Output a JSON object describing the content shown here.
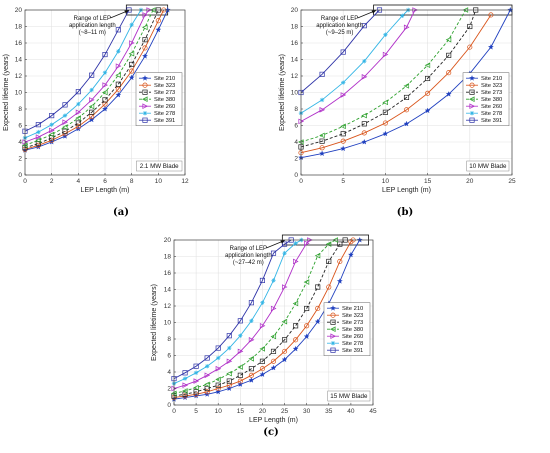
{
  "series_styles": [
    {
      "color": "#1f3fbf",
      "marker": "star",
      "dash": "none"
    },
    {
      "color": "#d9541a",
      "marker": "circle",
      "dash": "none"
    },
    {
      "color": "#222222",
      "marker": "square",
      "dash": "3,2"
    },
    {
      "color": "#2ca02c",
      "marker": "triangle-left",
      "dash": "3,2"
    },
    {
      "color": "#b030c8",
      "marker": "triangle-right",
      "dash": "none"
    },
    {
      "color": "#33b5e5",
      "marker": "asterisk",
      "dash": "none"
    },
    {
      "color": "#2f34a8",
      "marker": "square",
      "dash": "none"
    }
  ],
  "chart_data": [
    {
      "type": "line",
      "panel_label": "(a)",
      "xlabel": "LEP Length (m)",
      "ylabel": "Expected lifetime (years)",
      "xlim": [
        0,
        12
      ],
      "ylim": [
        0,
        20
      ],
      "xticks": [
        0,
        2,
        4,
        6,
        8,
        10,
        12
      ],
      "yticks": [
        0,
        2,
        4,
        6,
        8,
        10,
        12,
        14,
        16,
        18,
        20
      ],
      "grid": true,
      "legend_position": "right",
      "box_label": "2.1 MW Blade",
      "annotation": [
        "Range of LEP",
        "application length",
        "(~8–11 m)"
      ],
      "range_box": [
        7.6,
        10.7
      ],
      "series": [
        {
          "name": "Site 210",
          "x": [
            0,
            1,
            2,
            3,
            4,
            5,
            6,
            7,
            8,
            9,
            10,
            10.7
          ],
          "y": [
            3.0,
            3.4,
            4.0,
            4.7,
            5.6,
            6.7,
            8.0,
            9.7,
            11.8,
            14.4,
            17.6,
            20.0
          ]
        },
        {
          "name": "Site 323",
          "x": [
            0,
            1,
            2,
            3,
            4,
            5,
            6,
            7,
            8,
            9,
            10,
            10.4
          ],
          "y": [
            3.1,
            3.6,
            4.2,
            5.0,
            5.9,
            7.1,
            8.6,
            10.4,
            12.6,
            15.4,
            18.7,
            20.0
          ]
        },
        {
          "name": "Site 273",
          "x": [
            0,
            1,
            2,
            3,
            4,
            5,
            6,
            7,
            8,
            9,
            10
          ],
          "y": [
            3.3,
            3.8,
            4.5,
            5.3,
            6.3,
            7.6,
            9.1,
            11.0,
            13.4,
            16.4,
            20.0
          ]
        },
        {
          "name": "Site 380",
          "x": [
            0,
            1,
            2,
            3,
            4,
            5,
            6,
            7,
            8,
            9,
            9.6
          ],
          "y": [
            3.6,
            4.2,
            4.9,
            5.8,
            6.9,
            8.3,
            10.0,
            12.1,
            14.7,
            17.9,
            20.0
          ]
        },
        {
          "name": "Site 260",
          "x": [
            0,
            1,
            2,
            3,
            4,
            5,
            6,
            7,
            8,
            9,
            9.3
          ],
          "y": [
            4.0,
            4.6,
            5.4,
            6.4,
            7.6,
            9.1,
            10.9,
            13.2,
            16.0,
            19.4,
            20.0
          ]
        },
        {
          "name": "Site 278",
          "x": [
            0,
            1,
            2,
            3,
            4,
            5,
            6,
            7,
            8,
            8.7
          ],
          "y": [
            4.5,
            5.2,
            6.1,
            7.2,
            8.6,
            10.3,
            12.4,
            15.0,
            18.2,
            20.0
          ]
        },
        {
          "name": "Site 391",
          "x": [
            0,
            1,
            2,
            3,
            4,
            5,
            6,
            7,
            7.8
          ],
          "y": [
            5.3,
            6.1,
            7.2,
            8.5,
            10.1,
            12.1,
            14.6,
            17.6,
            20.0
          ]
        }
      ]
    },
    {
      "type": "line",
      "panel_label": "(b)",
      "xlabel": "LEP Length (m)",
      "ylabel": "Expected lifetime (years)",
      "xlim": [
        0,
        25
      ],
      "ylim": [
        0,
        20
      ],
      "xticks": [
        0,
        5,
        10,
        15,
        20,
        25
      ],
      "yticks": [
        0,
        2,
        4,
        6,
        8,
        10,
        12,
        14,
        16,
        18,
        20
      ],
      "grid": true,
      "legend_position": "right",
      "box_label": "10 MW Blade",
      "annotation": [
        "Range of LEP",
        "application length",
        "(~9–25 m)"
      ],
      "range_box": [
        8.6,
        25
      ],
      "series": [
        {
          "name": "Site 210",
          "x": [
            0,
            2.5,
            5,
            7.5,
            10,
            12.5,
            15,
            17.5,
            20,
            22.5,
            24.8
          ],
          "y": [
            2.1,
            2.6,
            3.2,
            4.0,
            5.0,
            6.2,
            7.8,
            9.8,
            12.3,
            15.5,
            20.0
          ]
        },
        {
          "name": "Site 323",
          "x": [
            0,
            2.5,
            5,
            7.5,
            10,
            12.5,
            15,
            17.5,
            20,
            22.5
          ],
          "y": [
            2.7,
            3.3,
            4.1,
            5.1,
            6.3,
            7.9,
            9.9,
            12.4,
            15.5,
            19.4
          ]
        },
        {
          "name": "Site 273",
          "x": [
            0,
            2.5,
            5,
            7.5,
            10,
            12.5,
            15,
            17.5,
            20,
            20.7
          ],
          "y": [
            3.4,
            4.1,
            5.0,
            6.2,
            7.6,
            9.4,
            11.7,
            14.5,
            18.0,
            20.0
          ]
        },
        {
          "name": "Site 380",
          "x": [
            0,
            2.5,
            5,
            7.5,
            10,
            12.5,
            15,
            17.5,
            19.5
          ],
          "y": [
            4.0,
            4.8,
            5.9,
            7.2,
            8.8,
            10.8,
            13.3,
            16.4,
            20.0
          ]
        },
        {
          "name": "Site 260",
          "x": [
            0,
            2.5,
            5,
            7.5,
            10,
            12.5,
            13.5
          ],
          "y": [
            6.5,
            7.9,
            9.7,
            11.9,
            14.6,
            17.9,
            20.0
          ]
        },
        {
          "name": "Site 278",
          "x": [
            0,
            2.5,
            5,
            7.5,
            10,
            12,
            12.7
          ],
          "y": [
            7.5,
            9.1,
            11.2,
            13.8,
            17.0,
            19.3,
            20.0
          ]
        },
        {
          "name": "Site 391",
          "x": [
            0,
            2.5,
            5,
            7.5,
            9.3
          ],
          "y": [
            10.0,
            12.2,
            14.9,
            18.1,
            20.0
          ]
        }
      ]
    },
    {
      "type": "line",
      "panel_label": "(c)",
      "xlabel": "LEP Length (m)",
      "ylabel": "Expected lifetime (years)",
      "xlim": [
        0,
        45
      ],
      "ylim": [
        0,
        20
      ],
      "xticks": [
        0,
        5,
        10,
        15,
        20,
        25,
        30,
        35,
        40,
        45
      ],
      "yticks": [
        0,
        2,
        4,
        6,
        8,
        10,
        12,
        14,
        16,
        18,
        20
      ],
      "grid": true,
      "legend_position": "right",
      "box_label": "15 MW Blade",
      "annotation": [
        "Range of LEP",
        "application length",
        "(~27–42 m)"
      ],
      "range_box": [
        24.5,
        44
      ],
      "series": [
        {
          "name": "Site 210",
          "x": [
            0,
            2.5,
            5,
            7.5,
            10,
            12.5,
            15,
            17.5,
            20,
            22.5,
            25,
            27.5,
            30,
            32.5,
            35,
            37.5,
            40,
            42
          ],
          "y": [
            0.7,
            0.9,
            1.1,
            1.3,
            1.6,
            2.0,
            2.5,
            3.0,
            3.7,
            4.5,
            5.5,
            6.8,
            8.3,
            10.1,
            12.3,
            15.0,
            18.2,
            20.0
          ]
        },
        {
          "name": "Site 323",
          "x": [
            0,
            2.5,
            5,
            7.5,
            10,
            12.5,
            15,
            17.5,
            20,
            22.5,
            25,
            27.5,
            30,
            32.5,
            35,
            37.5,
            40,
            40.5
          ],
          "y": [
            0.9,
            1.1,
            1.3,
            1.6,
            2.0,
            2.4,
            2.9,
            3.6,
            4.4,
            5.3,
            6.5,
            7.9,
            9.6,
            11.7,
            14.3,
            17.4,
            19.8,
            20.0
          ]
        },
        {
          "name": "Site 273",
          "x": [
            0,
            2.5,
            5,
            7.5,
            10,
            12.5,
            15,
            17.5,
            20,
            22.5,
            25,
            27.5,
            30,
            32.5,
            35,
            37.5,
            38.7
          ],
          "y": [
            1.1,
            1.3,
            1.6,
            2.0,
            2.4,
            2.9,
            3.6,
            4.4,
            5.3,
            6.5,
            7.9,
            9.6,
            11.7,
            14.3,
            17.4,
            19.5,
            20.0
          ]
        },
        {
          "name": "Site 380",
          "x": [
            0,
            2.5,
            5,
            7.5,
            10,
            12.5,
            15,
            17.5,
            20,
            22.5,
            25,
            27.5,
            30,
            32.5,
            35,
            36.5
          ],
          "y": [
            1.4,
            1.7,
            2.1,
            2.5,
            3.1,
            3.8,
            4.6,
            5.6,
            6.8,
            8.3,
            10.1,
            12.3,
            14.9,
            18.1,
            19.5,
            20.0
          ]
        },
        {
          "name": "Site 260",
          "x": [
            0,
            2.5,
            5,
            7.5,
            10,
            12.5,
            15,
            17.5,
            20,
            22.5,
            25,
            27.5,
            30,
            30.7
          ],
          "y": [
            2.0,
            2.4,
            2.9,
            3.6,
            4.4,
            5.3,
            6.5,
            7.9,
            9.6,
            11.7,
            14.3,
            17.4,
            19.6,
            20.0
          ]
        },
        {
          "name": "Site 278",
          "x": [
            0,
            2.5,
            5,
            7.5,
            10,
            12.5,
            15,
            17.5,
            20,
            22.5,
            25,
            27.5,
            28.8
          ],
          "y": [
            2.6,
            3.2,
            3.9,
            4.7,
            5.7,
            6.9,
            8.4,
            10.2,
            12.4,
            15.1,
            18.4,
            19.6,
            20.0
          ]
        },
        {
          "name": "Site 391",
          "x": [
            0,
            2.5,
            5,
            7.5,
            10,
            12.5,
            15,
            17.5,
            20,
            22.5,
            25,
            26.5
          ],
          "y": [
            3.2,
            3.9,
            4.7,
            5.7,
            6.9,
            8.4,
            10.2,
            12.4,
            15.1,
            18.4,
            19.5,
            20.0
          ]
        }
      ]
    }
  ]
}
